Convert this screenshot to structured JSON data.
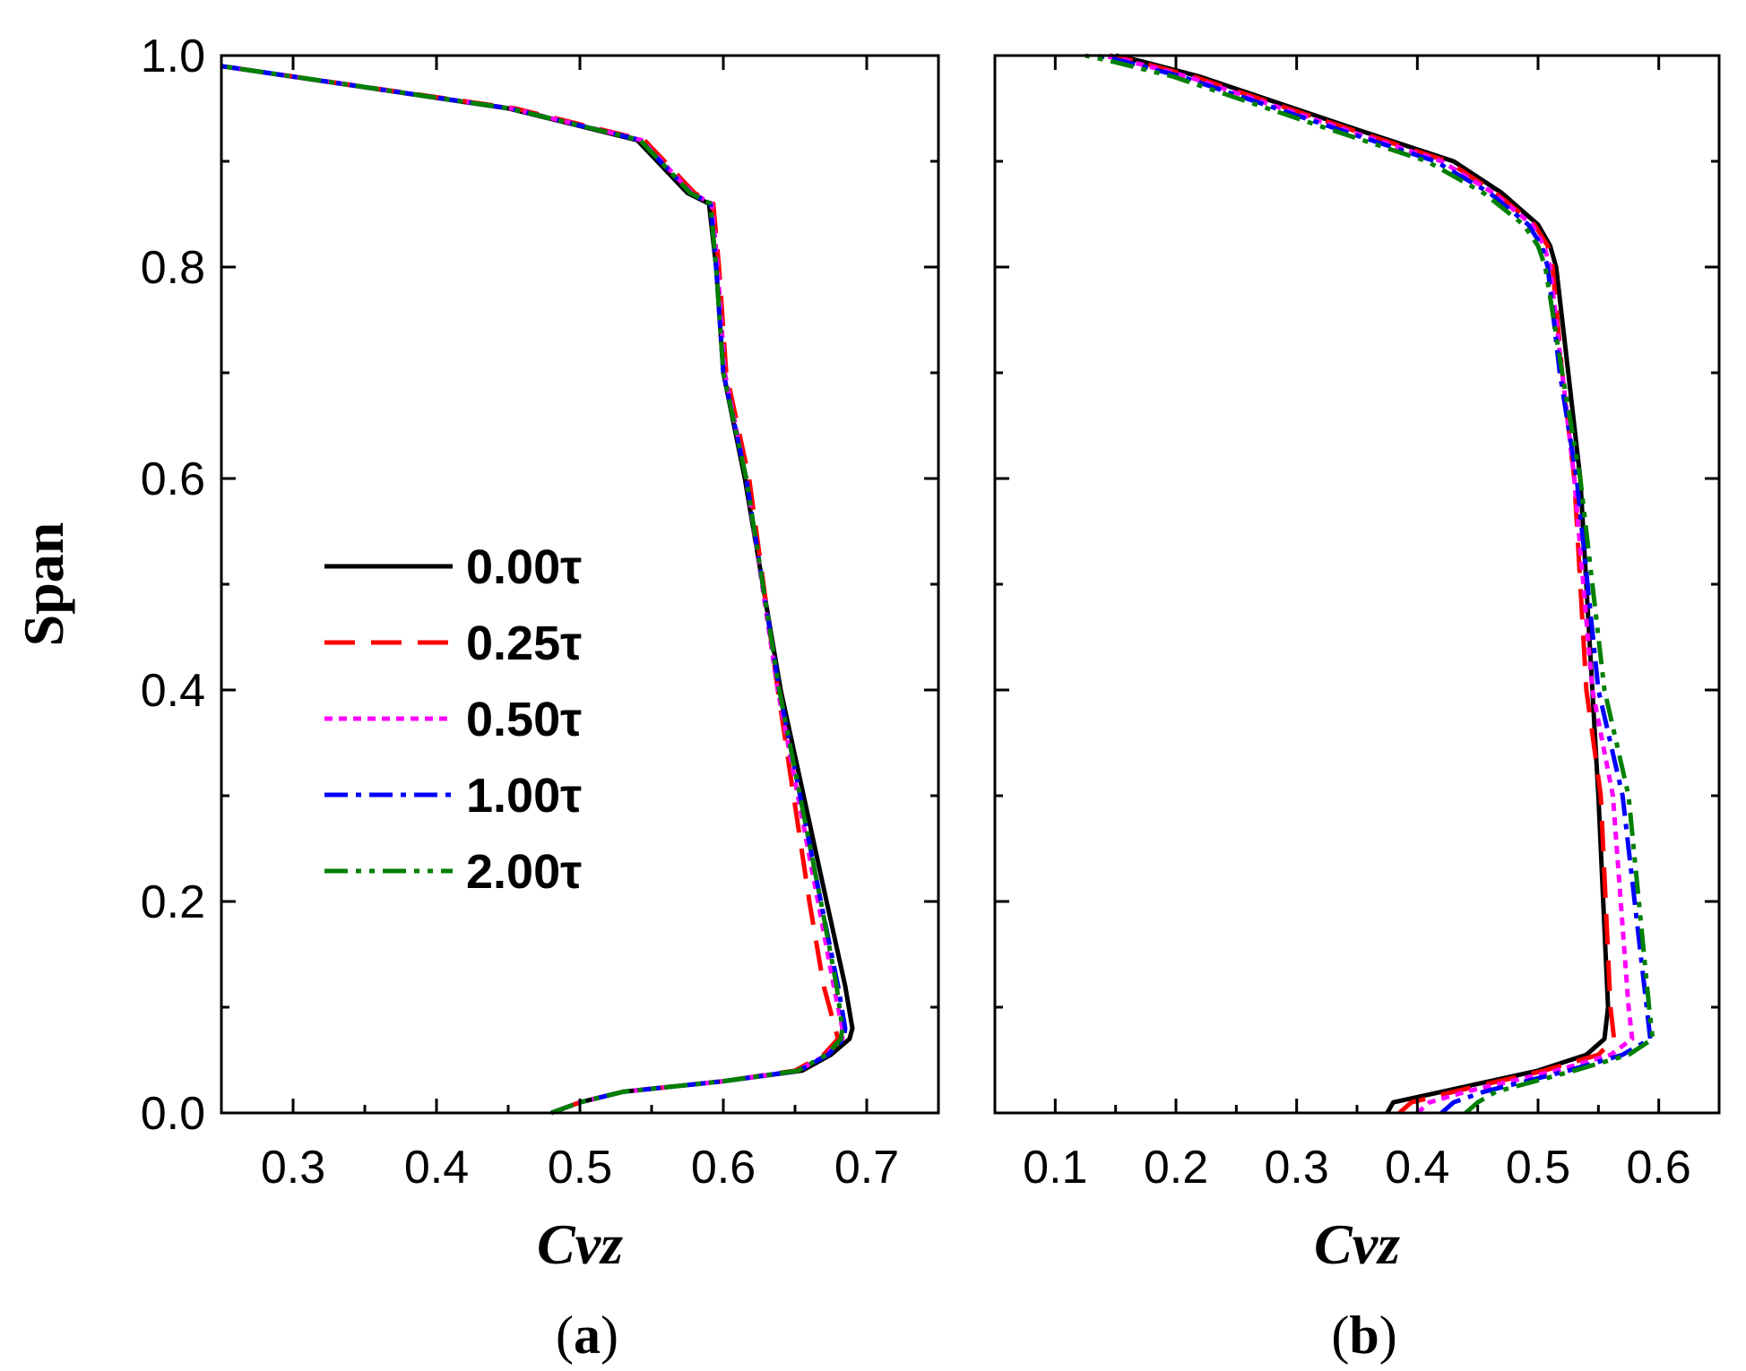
{
  "chart_data": [
    {
      "type": "line",
      "panel_label": "a",
      "xlabel": "Cvz",
      "ylabel": "Span",
      "xlim": [
        0.25,
        0.75
      ],
      "ylim": [
        0.0,
        1.0
      ],
      "xticks": [
        "0.3",
        "0.4",
        "0.5",
        "0.6",
        "0.7"
      ],
      "xtick_values": [
        0.3,
        0.4,
        0.5,
        0.6,
        0.7
      ],
      "yticks": [
        "0.0",
        "0.2",
        "0.4",
        "0.6",
        "0.8",
        "1.0"
      ],
      "ytick_values": [
        0.0,
        0.2,
        0.4,
        0.6,
        0.8,
        1.0
      ],
      "legend": {
        "location": "center-left"
      },
      "series": [
        {
          "name": "0.00τ",
          "color": "#000000",
          "dash": "solid",
          "x": [
            0.48,
            0.5,
            0.53,
            0.6,
            0.655,
            0.675,
            0.688,
            0.69,
            0.685,
            0.672,
            0.64,
            0.615,
            0.6,
            0.595,
            0.59,
            0.575,
            0.54,
            0.45,
            0.35,
            0.25
          ],
          "y": [
            0.0,
            0.01,
            0.02,
            0.03,
            0.04,
            0.055,
            0.07,
            0.08,
            0.12,
            0.2,
            0.4,
            0.6,
            0.7,
            0.8,
            0.86,
            0.87,
            0.92,
            0.95,
            0.97,
            0.99
          ]
        },
        {
          "name": "0.25τ",
          "color": "#ff0000",
          "dash": "dashed",
          "x": [
            0.48,
            0.5,
            0.53,
            0.6,
            0.65,
            0.67,
            0.68,
            0.678,
            0.67,
            0.66,
            0.638,
            0.618,
            0.602,
            0.597,
            0.593,
            0.58,
            0.545,
            0.455,
            0.352,
            0.25
          ],
          "y": [
            0.0,
            0.01,
            0.02,
            0.03,
            0.04,
            0.055,
            0.07,
            0.08,
            0.12,
            0.2,
            0.4,
            0.6,
            0.7,
            0.8,
            0.86,
            0.87,
            0.92,
            0.95,
            0.97,
            0.99
          ]
        },
        {
          "name": "0.50τ",
          "color": "#ff00ff",
          "dash": "dotted",
          "x": [
            0.48,
            0.5,
            0.53,
            0.6,
            0.652,
            0.672,
            0.683,
            0.683,
            0.677,
            0.666,
            0.638,
            0.616,
            0.601,
            0.596,
            0.592,
            0.578,
            0.543,
            0.452,
            0.351,
            0.25
          ],
          "y": [
            0.0,
            0.01,
            0.02,
            0.03,
            0.04,
            0.055,
            0.07,
            0.08,
            0.12,
            0.2,
            0.4,
            0.6,
            0.7,
            0.8,
            0.86,
            0.87,
            0.92,
            0.95,
            0.97,
            0.99
          ]
        },
        {
          "name": "1.00τ",
          "color": "#0000ff",
          "dash": "dashdot",
          "x": [
            0.48,
            0.5,
            0.53,
            0.6,
            0.653,
            0.673,
            0.684,
            0.685,
            0.68,
            0.668,
            0.639,
            0.616,
            0.6,
            0.595,
            0.591,
            0.577,
            0.542,
            0.451,
            0.351,
            0.25
          ],
          "y": [
            0.0,
            0.01,
            0.02,
            0.03,
            0.04,
            0.055,
            0.07,
            0.08,
            0.12,
            0.2,
            0.4,
            0.6,
            0.7,
            0.8,
            0.86,
            0.87,
            0.92,
            0.95,
            0.97,
            0.99
          ]
        },
        {
          "name": "2.00τ",
          "color": "#008000",
          "dash": "dashdotdot",
          "x": [
            0.48,
            0.5,
            0.53,
            0.6,
            0.652,
            0.672,
            0.682,
            0.683,
            0.679,
            0.668,
            0.639,
            0.616,
            0.6,
            0.595,
            0.591,
            0.577,
            0.542,
            0.451,
            0.351,
            0.25
          ],
          "y": [
            0.0,
            0.01,
            0.02,
            0.03,
            0.04,
            0.055,
            0.07,
            0.08,
            0.12,
            0.2,
            0.4,
            0.6,
            0.7,
            0.8,
            0.86,
            0.87,
            0.92,
            0.95,
            0.97,
            0.99
          ]
        }
      ]
    },
    {
      "type": "line",
      "panel_label": "b",
      "xlabel": "Cvz",
      "ylabel": "",
      "xlim": [
        0.05,
        0.65
      ],
      "ylim": [
        0.0,
        1.0
      ],
      "xticks": [
        "0.1",
        "0.2",
        "0.3",
        "0.4",
        "0.5",
        "0.6"
      ],
      "xtick_values": [
        0.1,
        0.2,
        0.3,
        0.4,
        0.5,
        0.6
      ],
      "yticks": [
        "0.0",
        "0.2",
        "0.4",
        "0.6",
        "0.8",
        "1.0"
      ],
      "ytick_values": [
        0.0,
        0.2,
        0.4,
        0.6,
        0.8,
        1.0
      ],
      "series": [
        {
          "name": "0.00τ",
          "color": "#000000",
          "dash": "solid",
          "x": [
            0.375,
            0.38,
            0.42,
            0.5,
            0.54,
            0.555,
            0.558,
            0.55,
            0.545,
            0.535,
            0.525,
            0.515,
            0.51,
            0.5,
            0.47,
            0.43,
            0.35,
            0.22,
            0.17,
            0.15
          ],
          "y": [
            0.0,
            0.01,
            0.02,
            0.04,
            0.055,
            0.07,
            0.1,
            0.3,
            0.4,
            0.6,
            0.7,
            0.8,
            0.82,
            0.84,
            0.87,
            0.9,
            0.93,
            0.98,
            0.995,
            1.0
          ]
        },
        {
          "name": "0.25τ",
          "color": "#ff0000",
          "dash": "dashed",
          "x": [
            0.385,
            0.395,
            0.43,
            0.505,
            0.55,
            0.563,
            0.56,
            0.552,
            0.54,
            0.53,
            0.52,
            0.512,
            0.508,
            0.497,
            0.465,
            0.425,
            0.345,
            0.215,
            0.165,
            0.145
          ],
          "y": [
            0.0,
            0.01,
            0.02,
            0.04,
            0.055,
            0.07,
            0.1,
            0.3,
            0.4,
            0.6,
            0.7,
            0.8,
            0.82,
            0.84,
            0.87,
            0.9,
            0.93,
            0.98,
            0.995,
            1.0
          ]
        },
        {
          "name": "0.50τ",
          "color": "#ff00ff",
          "dash": "dotted",
          "x": [
            0.4,
            0.41,
            0.44,
            0.515,
            0.56,
            0.578,
            0.575,
            0.562,
            0.545,
            0.53,
            0.52,
            0.51,
            0.505,
            0.495,
            0.463,
            0.42,
            0.34,
            0.21,
            0.16,
            0.14
          ],
          "y": [
            0.0,
            0.01,
            0.02,
            0.04,
            0.055,
            0.07,
            0.1,
            0.3,
            0.4,
            0.6,
            0.7,
            0.8,
            0.82,
            0.84,
            0.87,
            0.9,
            0.93,
            0.98,
            0.995,
            1.0
          ]
        },
        {
          "name": "1.00τ",
          "color": "#0000ff",
          "dash": "dashdot",
          "x": [
            0.42,
            0.43,
            0.455,
            0.525,
            0.57,
            0.593,
            0.59,
            0.57,
            0.55,
            0.532,
            0.518,
            0.508,
            0.503,
            0.492,
            0.46,
            0.415,
            0.335,
            0.205,
            0.155,
            0.135
          ],
          "y": [
            0.0,
            0.01,
            0.02,
            0.04,
            0.055,
            0.07,
            0.1,
            0.3,
            0.4,
            0.6,
            0.7,
            0.8,
            0.82,
            0.84,
            0.87,
            0.9,
            0.93,
            0.98,
            0.995,
            1.0
          ]
        },
        {
          "name": "2.00τ",
          "color": "#008000",
          "dash": "dashdotdot",
          "x": [
            0.44,
            0.45,
            0.465,
            0.53,
            0.575,
            0.595,
            0.592,
            0.575,
            0.555,
            0.535,
            0.52,
            0.506,
            0.5,
            0.488,
            0.455,
            0.408,
            0.328,
            0.198,
            0.145,
            0.125
          ],
          "y": [
            0.0,
            0.01,
            0.02,
            0.04,
            0.055,
            0.07,
            0.1,
            0.3,
            0.4,
            0.6,
            0.7,
            0.8,
            0.82,
            0.84,
            0.87,
            0.9,
            0.93,
            0.98,
            0.995,
            1.0
          ]
        }
      ]
    }
  ]
}
